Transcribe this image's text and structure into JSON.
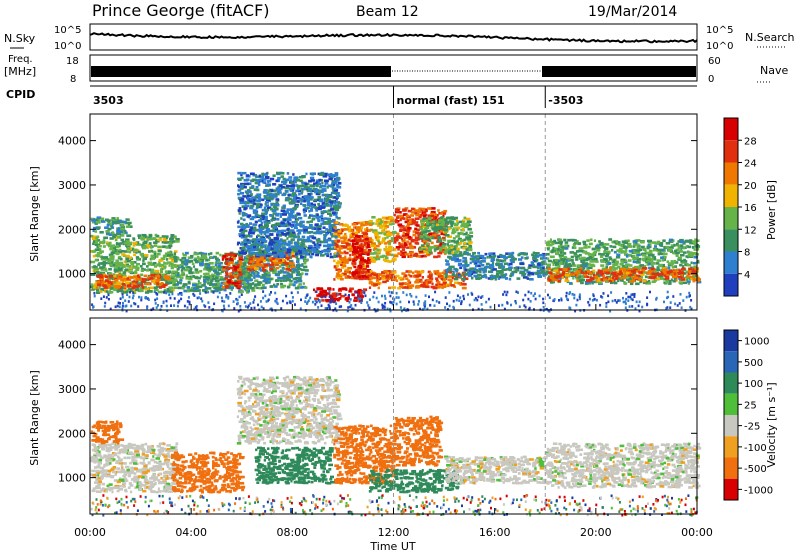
{
  "header": {
    "station": "Prince George (fitACF)",
    "beam": "Beam 12",
    "date": "19/Mar/2014"
  },
  "status_panels": {
    "nsky_label": "N.Sky",
    "nsearch_label": "N.Search",
    "freq_label_line1": "Freq.",
    "freq_label_line2": "[MHz]",
    "nave_label": "Nave",
    "cpid_label": "CPID",
    "noise_ticks": [
      "10^5",
      "10^0"
    ],
    "freq_ticks": [
      "18",
      "8"
    ],
    "nave_ticks": [
      "60",
      "0"
    ],
    "cpid_segments": [
      {
        "label": "3503",
        "start": 0,
        "end": 12
      },
      {
        "label": "normal (fast) 151",
        "start": 12,
        "end": 18
      },
      {
        "label": "-3503",
        "start": 18,
        "end": 24
      }
    ]
  },
  "colors": {
    "power": [
      "#1f3fbf",
      "#2f7fd0",
      "#3a8f5f",
      "#66b34a",
      "#f0b400",
      "#f07800",
      "#e03010",
      "#d80000"
    ],
    "velocity": [
      "#1a3aa0",
      "#2a66b8",
      "#2f8a5a",
      "#4fbf3a",
      "#c8c8c0",
      "#f0a020",
      "#f07010",
      "#d80000"
    ]
  },
  "chart_data": [
    {
      "type": "heatmap",
      "title": "",
      "ylabel": "Slant Range [km]",
      "xlabel": "",
      "x_ticks": [
        "00:00",
        "04:00",
        "08:00",
        "12:00",
        "16:00",
        "20:00",
        "00:00"
      ],
      "y_ticks": [
        "1000",
        "2000",
        "3000",
        "4000"
      ],
      "xlim": [
        0,
        24
      ],
      "ylim": [
        180,
        4600
      ],
      "colorbar_label": "Power [dB]",
      "colorbar_ticks": [
        "4",
        "8",
        "12",
        "16",
        "20",
        "24",
        "28"
      ],
      "colorbar_range": [
        0,
        30
      ],
      "blobs": [
        {
          "t0": 0.0,
          "t1": 3.4,
          "r0": 600,
          "r1": 1900,
          "v": 12
        },
        {
          "t0": 0.0,
          "t1": 1.5,
          "r0": 1900,
          "r1": 2300,
          "v": 9
        },
        {
          "t0": 0.2,
          "t1": 3.0,
          "r0": 700,
          "r1": 1000,
          "v": 22
        },
        {
          "t0": 3.4,
          "t1": 6.4,
          "r0": 600,
          "r1": 1500,
          "v": 10
        },
        {
          "t0": 5.2,
          "t1": 5.9,
          "r0": 700,
          "r1": 1500,
          "v": 25
        },
        {
          "t0": 6.0,
          "t1": 8.5,
          "r0": 700,
          "r1": 1800,
          "v": 9
        },
        {
          "t0": 6.2,
          "t1": 8.0,
          "r0": 1100,
          "r1": 1500,
          "v": 22
        },
        {
          "t0": 5.8,
          "t1": 9.8,
          "r0": 1400,
          "r1": 3300,
          "v": 6
        },
        {
          "t0": 8.8,
          "t1": 10.8,
          "r0": 400,
          "r1": 700,
          "v": 28
        },
        {
          "t0": 9.6,
          "t1": 11.0,
          "r0": 900,
          "r1": 2200,
          "v": 21
        },
        {
          "t0": 10.3,
          "t1": 11.0,
          "r0": 900,
          "r1": 1900,
          "v": 27
        },
        {
          "t0": 11.0,
          "t1": 12.0,
          "r0": 1300,
          "r1": 2300,
          "v": 16
        },
        {
          "t0": 12.0,
          "t1": 14.0,
          "r0": 1400,
          "r1": 2500,
          "v": 24
        },
        {
          "t0": 11.0,
          "t1": 14.8,
          "r0": 700,
          "r1": 1100,
          "v": 22
        },
        {
          "t0": 14.0,
          "t1": 18.0,
          "r0": 900,
          "r1": 1500,
          "v": 7
        },
        {
          "t0": 13.0,
          "t1": 15.0,
          "r0": 1500,
          "r1": 2300,
          "v": 12
        },
        {
          "t0": 18.0,
          "t1": 24.0,
          "r0": 800,
          "r1": 1800,
          "v": 11
        },
        {
          "t0": 18.0,
          "t1": 24.0,
          "r0": 850,
          "r1": 1150,
          "v": 22
        }
      ]
    },
    {
      "type": "heatmap",
      "title": "",
      "ylabel": "Slant Range [km]",
      "xlabel": "Time UT",
      "x_ticks": [
        "00:00",
        "04:00",
        "08:00",
        "12:00",
        "16:00",
        "20:00",
        "00:00"
      ],
      "y_ticks": [
        "1000",
        "2000",
        "3000",
        "4000"
      ],
      "xlim": [
        0,
        24
      ],
      "ylim": [
        180,
        4600
      ],
      "colorbar_label": "Velocity [m s⁻¹]",
      "colorbar_ticks": [
        "1000",
        "500",
        "100",
        "25",
        "-25",
        "-100",
        "-500",
        "-1000"
      ],
      "blobs": [
        {
          "t0": 0.0,
          "t1": 3.4,
          "r0": 700,
          "r1": 1800,
          "v": 0
        },
        {
          "t0": 0.0,
          "t1": 1.2,
          "r0": 1800,
          "r1": 2300,
          "v": -300
        },
        {
          "t0": 3.2,
          "t1": 6.0,
          "r0": 700,
          "r1": 1600,
          "v": -200
        },
        {
          "t0": 6.5,
          "t1": 9.5,
          "r0": 900,
          "r1": 1700,
          "v": 150
        },
        {
          "t0": 5.8,
          "t1": 9.8,
          "r0": 1800,
          "r1": 3300,
          "v": 0
        },
        {
          "t0": 9.6,
          "t1": 12.0,
          "r0": 900,
          "r1": 2200,
          "v": -300
        },
        {
          "t0": 12.0,
          "t1": 13.8,
          "r0": 1300,
          "r1": 2400,
          "v": -200
        },
        {
          "t0": 11.0,
          "t1": 14.5,
          "r0": 700,
          "r1": 1200,
          "v": 200
        },
        {
          "t0": 14.0,
          "t1": 18.0,
          "r0": 900,
          "r1": 1500,
          "v": 0
        },
        {
          "t0": 18.0,
          "t1": 24.0,
          "r0": 800,
          "r1": 1800,
          "v": 0
        }
      ]
    }
  ]
}
